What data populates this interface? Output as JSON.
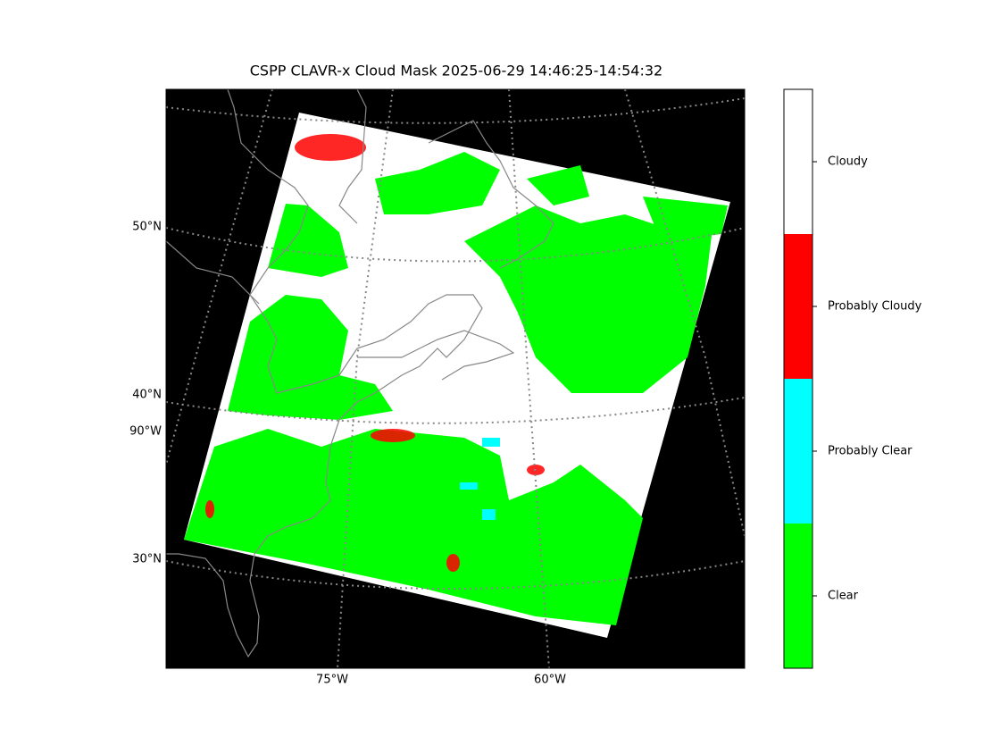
{
  "title": "CSPP CLAVR-x Cloud Mask 2025-06-29 14:46:25-14:54:32",
  "lat_labels": [
    "50°N",
    "40°N",
    "90°W",
    "30°N"
  ],
  "lon_labels": [
    "75°W",
    "60°W"
  ],
  "colorbar": {
    "classes": [
      {
        "label": "Cloudy",
        "color": "#ffffff"
      },
      {
        "label": "Probably Cloudy",
        "color": "#ff0000"
      },
      {
        "label": "Probably Clear",
        "color": "#00ffff"
      },
      {
        "label": "Clear",
        "color": "#00ff00"
      }
    ]
  }
}
